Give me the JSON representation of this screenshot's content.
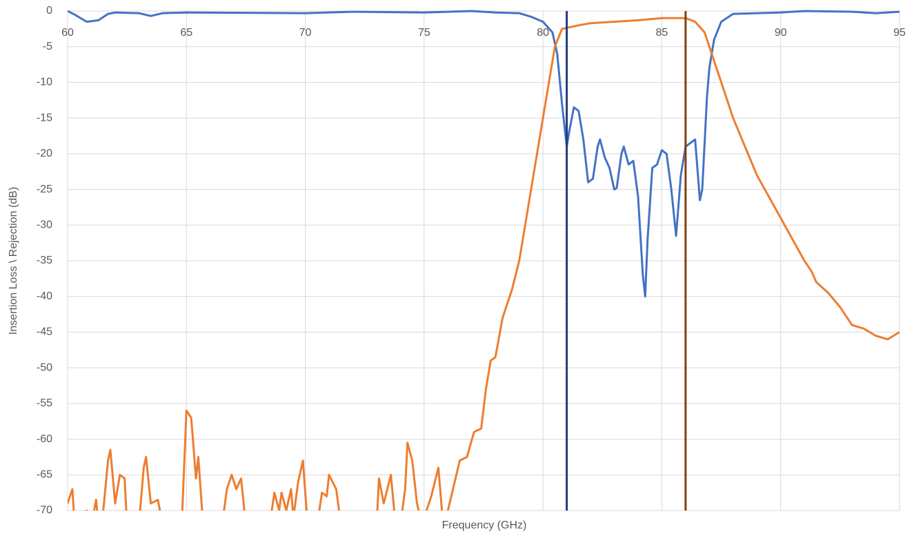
{
  "chart_data": {
    "type": "line",
    "xlabel": "Frequency (GHz)",
    "ylabel": "Insertion Loss \\ Rejection (dB)",
    "xlim": [
      60,
      95
    ],
    "xticks": [
      60,
      65,
      70,
      75,
      80,
      85,
      90,
      95
    ],
    "ylim": [
      -70,
      0
    ],
    "yticks": [
      0,
      -5,
      -10,
      -15,
      -20,
      -25,
      -30,
      -35,
      -40,
      -45,
      -50,
      -55,
      -60,
      -65,
      -70
    ],
    "grid": true,
    "series": [
      {
        "color": "#4472c4",
        "x": [
          60,
          60.3,
          60.8,
          61.3,
          61.7,
          62,
          63,
          63.5,
          64,
          65,
          70,
          72,
          75,
          77,
          78,
          79,
          79.5,
          80,
          80.4,
          80.6,
          80.8,
          81,
          81.1,
          81.3,
          81.5,
          81.7,
          81.9,
          82.1,
          82.3,
          82.4,
          82.6,
          82.8,
          83,
          83.1,
          83.3,
          83.4,
          83.6,
          83.8,
          84,
          84.2,
          84.3,
          84.4,
          84.6,
          84.8,
          85,
          85.2,
          85.4,
          85.6,
          85.8,
          86,
          86.2,
          86.4,
          86.6,
          86.7,
          86.9,
          87,
          87.2,
          87.5,
          88,
          89,
          90,
          91,
          93,
          94,
          95
        ],
        "values": [
          0,
          -0.5,
          -1.5,
          -1.3,
          -0.4,
          -0.2,
          -0.3,
          -0.7,
          -0.3,
          -0.2,
          -0.3,
          -0.1,
          -0.2,
          0,
          -0.2,
          -0.3,
          -0.8,
          -1.5,
          -3,
          -6,
          -13,
          -19,
          -17,
          -13.5,
          -14,
          -18,
          -24,
          -23.5,
          -19,
          -18,
          -20.5,
          -22,
          -25,
          -24.8,
          -20,
          -19,
          -21.5,
          -21,
          -26,
          -37,
          -40,
          -32,
          -22,
          -21.5,
          -19.5,
          -20,
          -25,
          -31.5,
          -23,
          -19,
          -18.5,
          -18,
          -26.5,
          -25,
          -12,
          -8,
          -4,
          -1.5,
          -0.4,
          -0.3,
          -0.2,
          0,
          -0.1,
          -0.3,
          -0.1
        ]
      },
      {
        "color": "#ed7d31",
        "x": [
          60,
          60.2,
          60.3,
          60.8,
          61,
          61.2,
          61.3,
          61.5,
          61.7,
          61.8,
          62,
          62.2,
          62.4,
          62.5,
          63,
          63.2,
          63.3,
          63.5,
          63.8,
          64,
          64.8,
          65,
          65.2,
          65.4,
          65.5,
          65.7,
          66.5,
          66.7,
          66.9,
          67.1,
          67.3,
          67.5,
          68.5,
          68.7,
          68.9,
          69,
          69.2,
          69.4,
          69.5,
          69.7,
          69.9,
          70.1,
          70.5,
          70.7,
          70.9,
          71,
          71.3,
          71.5,
          73,
          73.1,
          73.3,
          73.6,
          73.8,
          74,
          74.2,
          74.3,
          74.5,
          74.7,
          74.9,
          75.3,
          75.6,
          75.8,
          76,
          76.5,
          76.8,
          77.1,
          77.4,
          77.6,
          77.8,
          78,
          78.3,
          78.7,
          79,
          79.5,
          80,
          80.5,
          80.8,
          81.5,
          82,
          83,
          84,
          85,
          86,
          86.4,
          86.8,
          87,
          87.5,
          88,
          88.5,
          89,
          89.5,
          90,
          90.5,
          91,
          91.3,
          91.5,
          92,
          92.5,
          93,
          93.5,
          94,
          94.5,
          95
        ],
        "values": [
          -69,
          -67,
          -72,
          -70,
          -72,
          -68.5,
          -72,
          -70,
          -63,
          -61.5,
          -69,
          -65,
          -65.5,
          -72,
          -72,
          -64,
          -62.5,
          -69,
          -68.5,
          -72,
          -72,
          -56,
          -57,
          -65.5,
          -62.5,
          -72,
          -72,
          -67,
          -65,
          -67,
          -65.5,
          -72,
          -72,
          -67.5,
          -70,
          -67.5,
          -70,
          -67,
          -71,
          -66,
          -63,
          -72,
          -72,
          -67.5,
          -68,
          -65,
          -67,
          -72,
          -72,
          -65.5,
          -69,
          -65,
          -72,
          -72,
          -67,
          -60.5,
          -63,
          -69,
          -72,
          -68,
          -64,
          -72,
          -70,
          -63,
          -62.5,
          -59,
          -58.5,
          -53,
          -49,
          -48.5,
          -43,
          -39,
          -35,
          -25,
          -15,
          -5,
          -2.5,
          -2,
          -1.7,
          -1.5,
          -1.3,
          -1,
          -1,
          -1.5,
          -3,
          -5,
          -10,
          -15,
          -19,
          -23,
          -26,
          -29,
          -32,
          -35,
          -36.5,
          -38,
          -39.5,
          -41.5,
          -44,
          -44.5,
          -45.5,
          -46,
          -45
        ]
      }
    ],
    "vlines": [
      {
        "x": 81,
        "color": "#1f3d7a"
      },
      {
        "x": 86,
        "color": "#843c0c"
      }
    ]
  }
}
